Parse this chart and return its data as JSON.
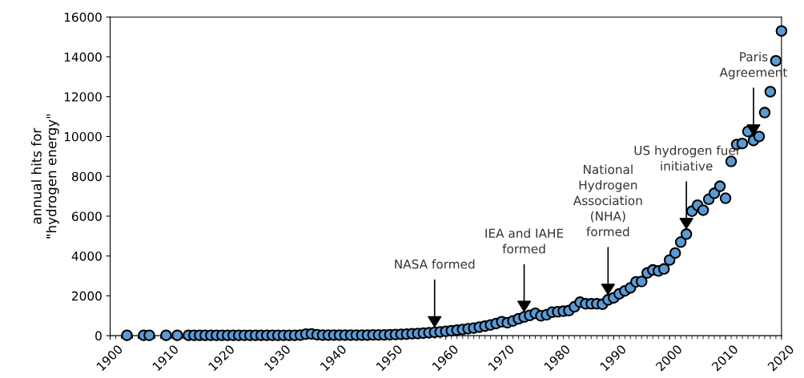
{
  "chart_data": {
    "type": "scatter",
    "ylabel": "annual hits for\n\"hydrogen energy\"",
    "x": [
      1903,
      1906,
      1907,
      1910,
      1912,
      1914,
      1915,
      1916,
      1917,
      1918,
      1919,
      1920,
      1921,
      1922,
      1923,
      1924,
      1925,
      1926,
      1927,
      1928,
      1929,
      1930,
      1931,
      1932,
      1933,
      1934,
      1935,
      1936,
      1937,
      1938,
      1939,
      1940,
      1941,
      1942,
      1943,
      1944,
      1945,
      1946,
      1947,
      1948,
      1949,
      1950,
      1951,
      1952,
      1953,
      1954,
      1955,
      1956,
      1957,
      1958,
      1959,
      1960,
      1961,
      1962,
      1963,
      1964,
      1965,
      1966,
      1967,
      1968,
      1969,
      1970,
      1971,
      1972,
      1973,
      1974,
      1975,
      1976,
      1977,
      1978,
      1979,
      1980,
      1981,
      1982,
      1983,
      1984,
      1985,
      1986,
      1987,
      1988,
      1989,
      1990,
      1991,
      1992,
      1993,
      1994,
      1995,
      1996,
      1997,
      1998,
      1999,
      2000,
      2001,
      2002,
      2003,
      2004,
      2005,
      2006,
      2007,
      2008,
      2009,
      2010,
      2011,
      2012,
      2013,
      2014,
      2015,
      2016,
      2017,
      2018,
      2019,
      2020
    ],
    "series": [
      {
        "color": "#5b9bd5",
        "values": [
          20,
          20,
          20,
          20,
          20,
          20,
          20,
          20,
          20,
          20,
          20,
          20,
          20,
          20,
          20,
          20,
          20,
          20,
          20,
          20,
          20,
          20,
          20,
          20,
          20,
          30,
          80,
          90,
          50,
          30,
          30,
          30,
          30,
          30,
          30,
          30,
          30,
          30,
          40,
          40,
          40,
          50,
          60,
          70,
          80,
          100,
          110,
          130,
          150,
          170,
          190,
          220,
          250,
          280,
          310,
          350,
          380,
          430,
          480,
          540,
          610,
          700,
          650,
          740,
          850,
          940,
          1020,
          1120,
          1000,
          1050,
          1180,
          1200,
          1230,
          1260,
          1450,
          1680,
          1600,
          1600,
          1600,
          1580,
          1800,
          1900,
          2100,
          2250,
          2400,
          2700,
          2720,
          3150,
          3300,
          3250,
          3350,
          3800,
          4150,
          4700,
          5100,
          6250,
          6550,
          6300,
          6850,
          7150,
          7500,
          6900,
          8750,
          9600,
          9650,
          10250,
          9800,
          10000,
          11200,
          12250,
          13800,
          15300
        ]
      }
    ],
    "xlim": [
      1900,
      2020
    ],
    "xticks": [
      1900,
      1910,
      1920,
      1930,
      1940,
      1950,
      1960,
      1970,
      1980,
      1990,
      2000,
      2010,
      2020
    ],
    "ylim": [
      0,
      16000
    ],
    "yticks": [
      0,
      2000,
      4000,
      6000,
      8000,
      10000,
      12000,
      14000,
      16000
    ],
    "grid": false,
    "legend": false,
    "marker": "circle",
    "annotations": [
      {
        "text": "NASA formed",
        "x": 1958,
        "y": 170
      },
      {
        "text": "IEA and IAHE\nformed",
        "x": 1974,
        "y": 940
      },
      {
        "text": "National\nHydrogen\nAssociation\n(NHA)\nformed",
        "x": 1989,
        "y": 1800
      },
      {
        "text": "US hydrogen fuel\ninitiative",
        "x": 2003,
        "y": 5100
      },
      {
        "text": "Paris\nAgreement",
        "x": 2015,
        "y": 9800
      }
    ]
  }
}
